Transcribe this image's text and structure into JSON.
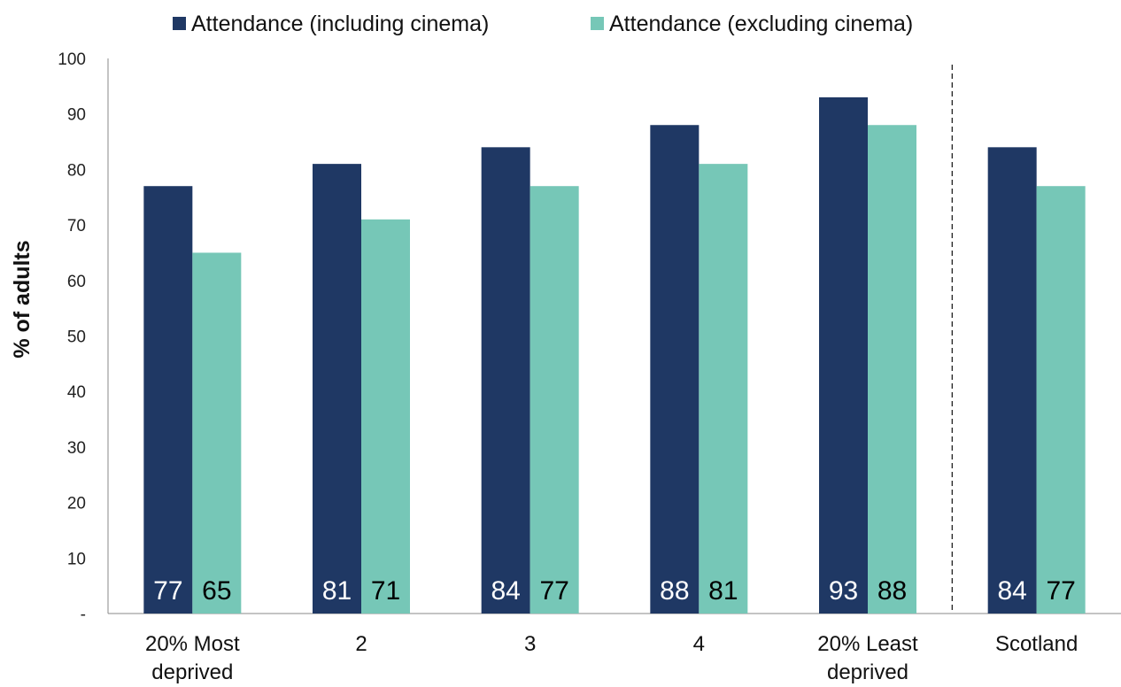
{
  "chart_data": {
    "type": "bar",
    "categories": [
      [
        "20% Most",
        "deprived"
      ],
      [
        "2"
      ],
      [
        "3"
      ],
      [
        "4"
      ],
      [
        "20% Least",
        "deprived"
      ],
      [
        "Scotland"
      ]
    ],
    "series": [
      {
        "name": "Attendance (including cinema)",
        "color": "#1f3864",
        "label_color": "#ffffff",
        "values": [
          77,
          81,
          84,
          88,
          93,
          84
        ]
      },
      {
        "name": "Attendance (excluding cinema)",
        "color": "#76c7b7",
        "label_color": "#000000",
        "values": [
          65,
          71,
          77,
          81,
          88,
          77
        ]
      }
    ],
    "ylabel": "% of adults",
    "ylim": [
      0,
      100
    ],
    "yticks": [
      "-",
      "10",
      "20",
      "30",
      "40",
      "50",
      "60",
      "70",
      "80",
      "90",
      "100"
    ],
    "separator_before_last_category": true,
    "grid": false,
    "legend_position": "top"
  }
}
